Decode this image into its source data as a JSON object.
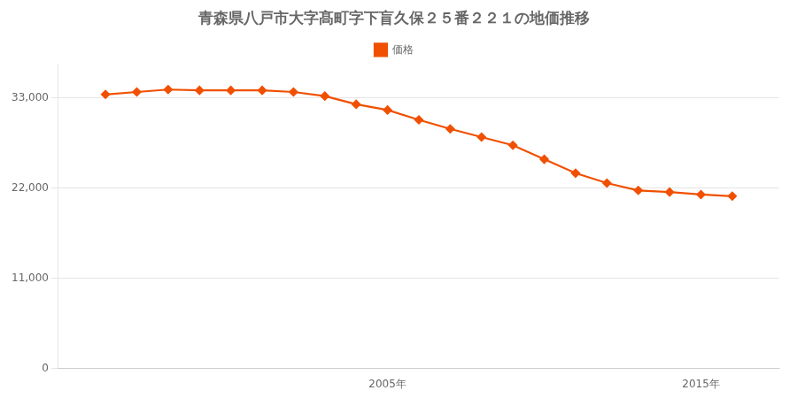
{
  "chart_data": {
    "type": "line",
    "title": "青森県八戸市大字髙町字下盲久保２５番２２１の地価推移",
    "x": [
      1996,
      1997,
      1998,
      1999,
      2000,
      2001,
      2002,
      2003,
      2004,
      2005,
      2006,
      2007,
      2008,
      2009,
      2010,
      2011,
      2012,
      2013,
      2014,
      2015,
      2016
    ],
    "series": [
      {
        "name": "価格",
        "color": "#f05000",
        "values": [
          33400,
          33700,
          34000,
          33900,
          33900,
          33900,
          33700,
          33200,
          32200,
          31500,
          30300,
          29200,
          28200,
          27200,
          25500,
          23800,
          22600,
          21700,
          21500,
          21200,
          21000
        ]
      }
    ],
    "xlim": [
      1994.5,
      2017.5
    ],
    "xticks": [
      {
        "value": 2005,
        "label": "2005年"
      },
      {
        "value": 2015,
        "label": "2015年"
      }
    ],
    "ylim": [
      0,
      37000
    ],
    "yticks": [
      0,
      {
        "value": 11000,
        "label": "11,000"
      },
      {
        "value": 22000,
        "label": "22,000"
      },
      {
        "value": 33000,
        "label": "33,000"
      }
    ],
    "grid": "y",
    "legend": "top",
    "marker": "diamond"
  }
}
